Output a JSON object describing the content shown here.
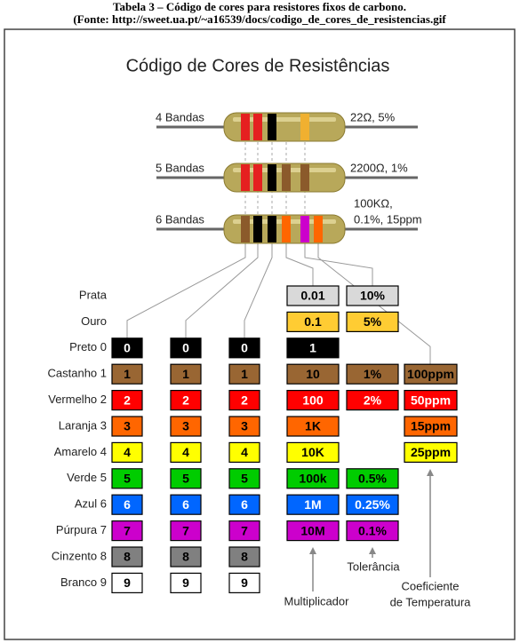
{
  "caption": [
    "Tabela 3 – Código de cores para resistores fixos de carbono.",
    "(Fonte: http://sweet.ua.pt/~a16539/docs/codigo_de_cores_de_resistencias.gif"
  ],
  "title": "Código de Cores de Resistências",
  "resistors": [
    {
      "label": "4 Bandas",
      "value": [
        "22Ω, 5%"
      ]
    },
    {
      "label": "5 Bandas",
      "value": [
        "2200Ω, 1%"
      ]
    },
    {
      "label": "6 Bandas",
      "value": [
        "100KΩ,",
        "0.1%, 15ppm"
      ]
    }
  ],
  "table": {
    "rows": [
      {
        "label": "Prata",
        "color": "#d9d9d9",
        "text_color": "#000",
        "digits": null,
        "multiplier": "0.01",
        "tolerance": "10%",
        "tempco": null
      },
      {
        "label": "Ouro",
        "color": "#ffcc33",
        "text_color": "#000",
        "digits": null,
        "multiplier": "0.1",
        "tolerance": "5%",
        "tempco": null
      },
      {
        "label": "Preto 0",
        "color": "#000000",
        "text_color": "#fff",
        "digits": [
          "0",
          "0",
          "0"
        ],
        "multiplier": "1",
        "tolerance": null,
        "tempco": null
      },
      {
        "label": "Castanho 1",
        "color": "#996633",
        "text_color": "#000",
        "digits": [
          "1",
          "1",
          "1"
        ],
        "multiplier": "10",
        "tolerance": "1%",
        "tempco": "100ppm"
      },
      {
        "label": "Vermelho 2",
        "color": "#ff0000",
        "text_color": "#fff",
        "digits": [
          "2",
          "2",
          "2"
        ],
        "multiplier": "100",
        "tolerance": "2%",
        "tempco": "50ppm"
      },
      {
        "label": "Laranja 3",
        "color": "#ff6600",
        "text_color": "#000",
        "digits": [
          "3",
          "3",
          "3"
        ],
        "multiplier": "1K",
        "tolerance": null,
        "tempco": "15ppm"
      },
      {
        "label": "Amarelo 4",
        "color": "#ffff00",
        "text_color": "#000",
        "digits": [
          "4",
          "4",
          "4"
        ],
        "multiplier": "10K",
        "tolerance": null,
        "tempco": "25ppm"
      },
      {
        "label": "Verde 5",
        "color": "#00cc00",
        "text_color": "#000",
        "digits": [
          "5",
          "5",
          "5"
        ],
        "multiplier": "100k",
        "tolerance": "0.5%",
        "tempco": null
      },
      {
        "label": "Azul 6",
        "color": "#0066ff",
        "text_color": "#fff",
        "digits": [
          "6",
          "6",
          "6"
        ],
        "multiplier": "1M",
        "tolerance": "0.25%",
        "tempco": null
      },
      {
        "label": "Púrpura 7",
        "color": "#cc00cc",
        "text_color": "#000",
        "digits": [
          "7",
          "7",
          "7"
        ],
        "multiplier": "10M",
        "tolerance": "0.1%",
        "tempco": null
      },
      {
        "label": "Cinzento 8",
        "color": "#808080",
        "text_color": "#000",
        "digits": [
          "8",
          "8",
          "8"
        ],
        "multiplier": null,
        "tolerance": null,
        "tempco": null
      },
      {
        "label": "Branco 9",
        "color": "#ffffff",
        "text_color": "#000",
        "digits": [
          "9",
          "9",
          "9"
        ],
        "multiplier": null,
        "tolerance": null,
        "tempco": null
      }
    ]
  },
  "annotations": {
    "multiplier": "Multiplicador",
    "tolerance": "Tolerância",
    "tempco": [
      "Coeficiente",
      "de Temperatura"
    ]
  }
}
